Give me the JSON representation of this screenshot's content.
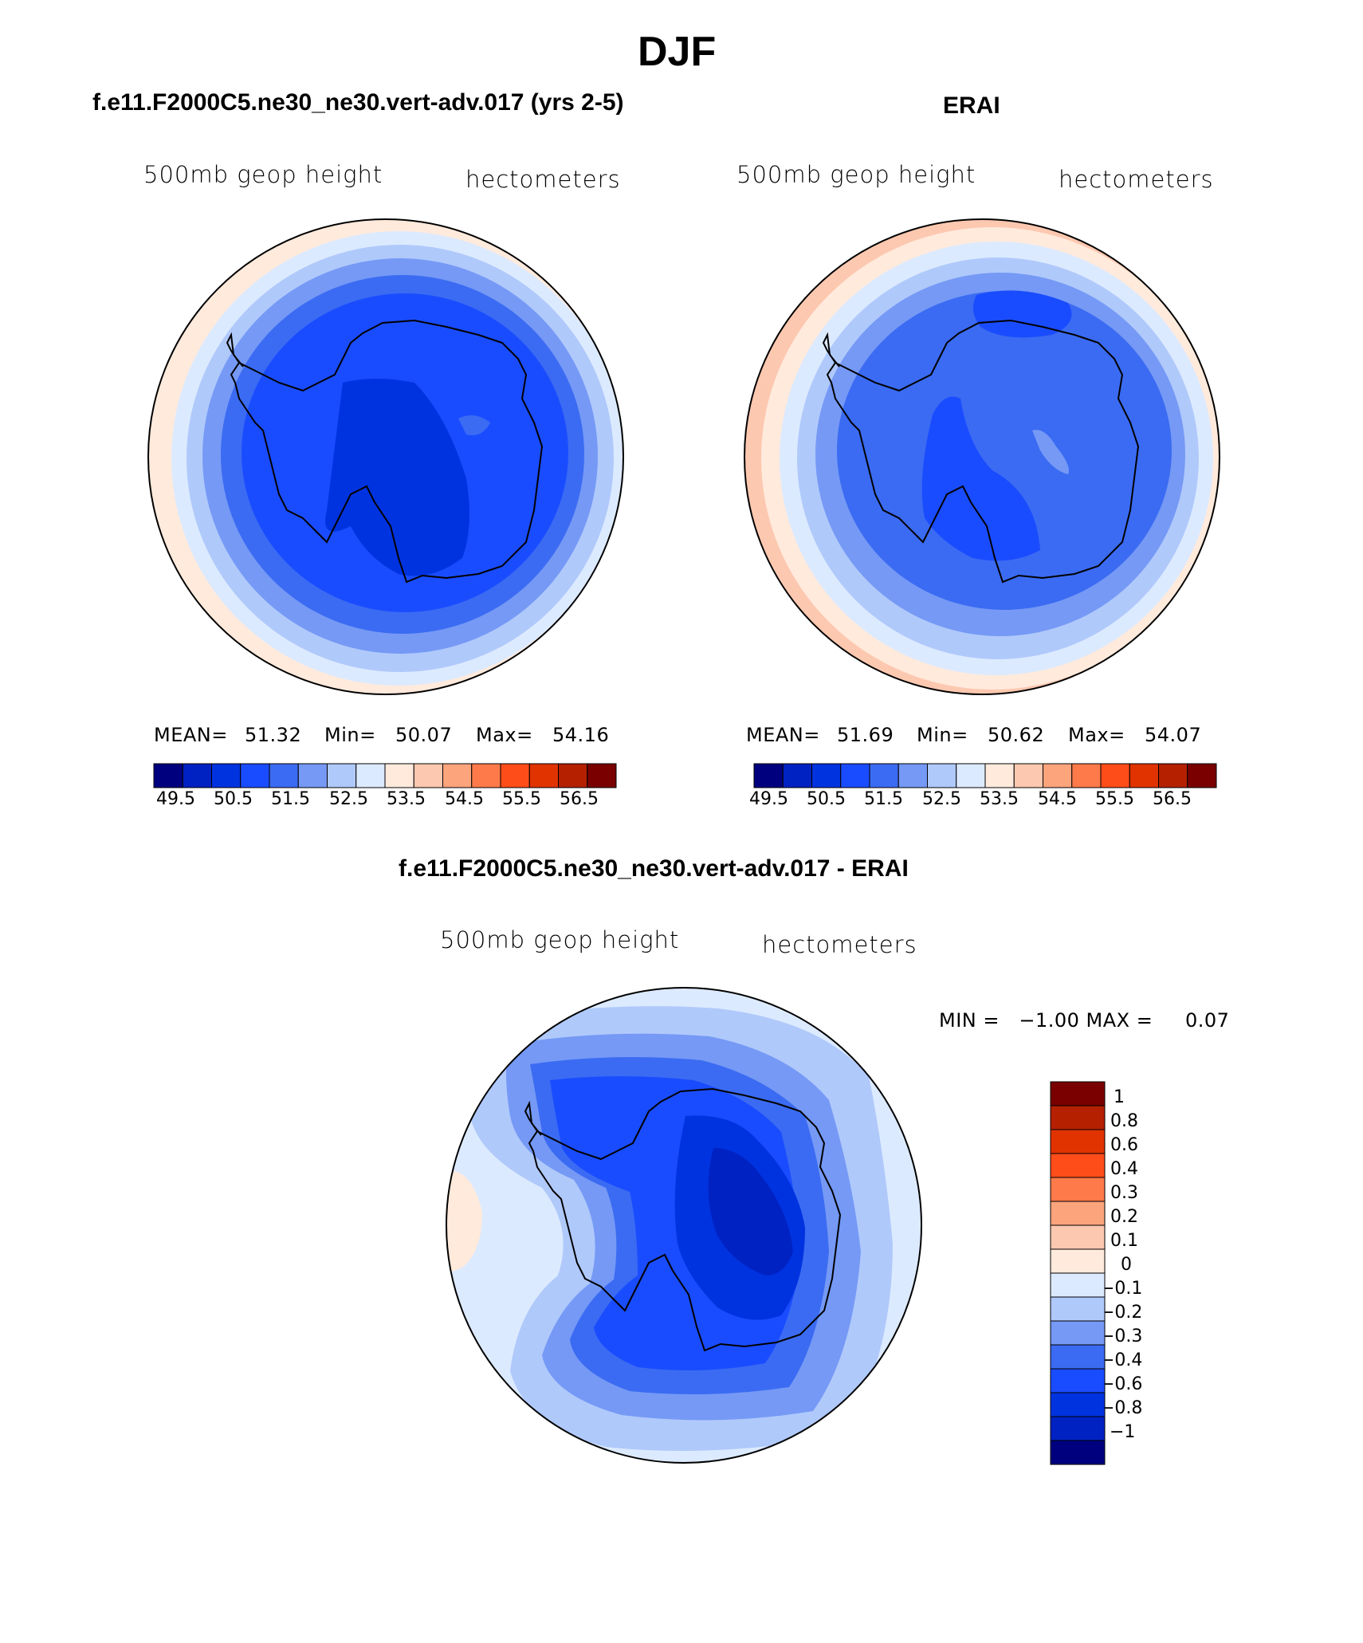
{
  "figure": {
    "title": "DJF",
    "colors": {
      "palette_abs": [
        "#00007f",
        "#0022c2",
        "#0033e0",
        "#1a4cff",
        "#3b6bf2",
        "#7599f5",
        "#b0c9fb",
        "#dceaff",
        "#ffeadc",
        "#fdc8b0",
        "#fca47c",
        "#ff7a4a",
        "#ff4d1a",
        "#e03300",
        "#b52000",
        "#7a0000"
      ],
      "palette_diff": [
        "#7a0000",
        "#b52000",
        "#e03300",
        "#ff4d1a",
        "#ff7a4a",
        "#fca47c",
        "#fdc8b0",
        "#ffeadc",
        "#dceaff",
        "#b0c9fb",
        "#7599f5",
        "#3b6bf2",
        "#1a4cff",
        "#0033e0",
        "#0022c2",
        "#00007f"
      ]
    }
  },
  "panels": [
    {
      "title": "f.e11.F2000C5.ne30_ne30.vert-adv.017 (yrs 2-5)",
      "variable": "500mb geop height",
      "units": "hectometers",
      "mean_label": "MEAN=",
      "mean": "51.32",
      "min_label": "Min=",
      "min": "50.07",
      "max_label": "Max=",
      "max": "54.16",
      "colorbar_labels": [
        "49.5",
        "50.5",
        "51.5",
        "52.5",
        "53.5",
        "54.5",
        "55.5",
        "56.5"
      ]
    },
    {
      "title": "ERAI",
      "variable": "500mb geop height",
      "units": "hectometers",
      "mean_label": "MEAN=",
      "mean": "51.69",
      "min_label": "Min=",
      "min": "50.62",
      "max_label": "Max=",
      "max": "54.07",
      "colorbar_labels": [
        "49.5",
        "50.5",
        "51.5",
        "52.5",
        "53.5",
        "54.5",
        "55.5",
        "56.5"
      ]
    },
    {
      "title": "f.e11.F2000C5.ne30_ne30.vert-adv.017 - ERAI",
      "variable": "500mb geop height",
      "units": "hectometers",
      "minmax_text": "MIN =   −1.00 MAX =     0.07",
      "colorbar_labels": [
        "1",
        "0.8",
        "0.6",
        "0.4",
        "0.3",
        "0.2",
        "0.1",
        "0",
        "−0.1",
        "−0.2",
        "−0.3",
        "−0.4",
        "−0.6",
        "−0.8",
        "−1"
      ]
    }
  ]
}
